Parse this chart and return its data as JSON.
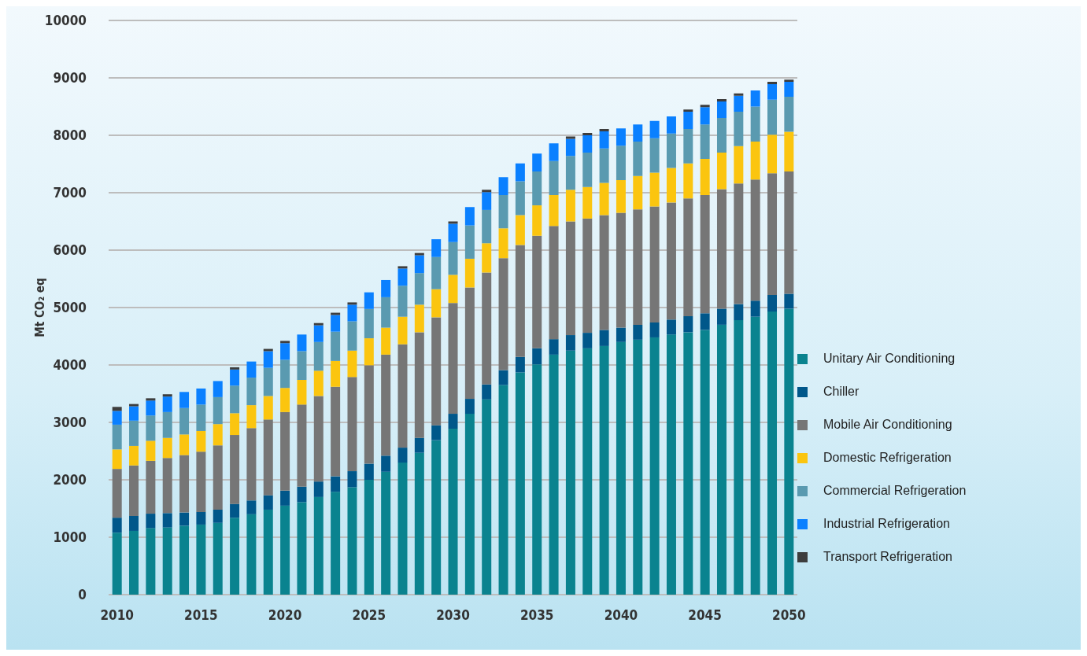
{
  "chart_data": {
    "type": "bar",
    "stacked": true,
    "ylabel": "Mt CO₂ eq",
    "categories": [
      "2010",
      null,
      null,
      null,
      null,
      "2015",
      null,
      null,
      null,
      null,
      "2020",
      null,
      null,
      null,
      null,
      "2025",
      null,
      null,
      null,
      null,
      "2030",
      null,
      null,
      null,
      null,
      "2035",
      null,
      null,
      null,
      null,
      "2040",
      null,
      null,
      null,
      null,
      "2045",
      null,
      null,
      null,
      null,
      "2050"
    ],
    "series": [
      {
        "name": "Unitary Air Conditioning",
        "color": "#0a838f",
        "values": [
          1080,
          1110,
          1160,
          1170,
          1200,
          1220,
          1250,
          1340,
          1400,
          1480,
          1550,
          1610,
          1700,
          1790,
          1870,
          2000,
          2140,
          2300,
          2470,
          2690,
          2890,
          3150,
          3400,
          3650,
          3870,
          4010,
          4180,
          4250,
          4290,
          4330,
          4400,
          4440,
          4480,
          4530,
          4570,
          4610,
          4700,
          4780,
          4840,
          4930,
          4980
        ]
      },
      {
        "name": "Chiller",
        "color": "#00578a",
        "values": [
          260,
          260,
          250,
          250,
          230,
          220,
          230,
          240,
          240,
          250,
          260,
          270,
          270,
          270,
          280,
          280,
          280,
          260,
          260,
          260,
          260,
          260,
          260,
          260,
          270,
          280,
          270,
          270,
          270,
          280,
          250,
          260,
          260,
          260,
          280,
          290,
          280,
          280,
          280,
          290,
          260
        ]
      },
      {
        "name": "Mobile Air Conditioning",
        "color": "#767676",
        "values": [
          850,
          880,
          920,
          960,
          1000,
          1050,
          1120,
          1200,
          1260,
          1320,
          1370,
          1430,
          1490,
          1560,
          1640,
          1715,
          1760,
          1800,
          1840,
          1880,
          1930,
          1940,
          1950,
          1950,
          1950,
          1960,
          1970,
          1980,
          1990,
          2000,
          2000,
          2010,
          2020,
          2040,
          2050,
          2060,
          2080,
          2100,
          2110,
          2120,
          2130
        ]
      },
      {
        "name": "Domestic Refrigeration",
        "color": "#fbc50f",
        "values": [
          340,
          340,
          350,
          350,
          360,
          360,
          370,
          380,
          400,
          410,
          420,
          430,
          440,
          450,
          460,
          470,
          470,
          480,
          480,
          490,
          490,
          500,
          510,
          520,
          520,
          530,
          540,
          550,
          550,
          560,
          570,
          580,
          590,
          600,
          610,
          630,
          640,
          650,
          660,
          670,
          690
        ]
      },
      {
        "name": "Commercial Refrigeration",
        "color": "#5a9ab0",
        "values": [
          430,
          440,
          440,
          450,
          460,
          460,
          470,
          480,
          480,
          490,
          490,
          500,
          500,
          510,
          510,
          510,
          530,
          540,
          550,
          560,
          570,
          580,
          580,
          580,
          590,
          590,
          590,
          590,
          600,
          600,
          600,
          600,
          600,
          600,
          600,
          600,
          600,
          600,
          610,
          610,
          610
        ]
      },
      {
        "name": "Industrial Refrigeration",
        "color": "#0a80ff",
        "values": [
          240,
          250,
          260,
          270,
          280,
          280,
          280,
          280,
          280,
          290,
          290,
          290,
          290,
          290,
          290,
          290,
          300,
          300,
          310,
          310,
          320,
          320,
          310,
          310,
          310,
          310,
          310,
          300,
          300,
          300,
          300,
          300,
          300,
          300,
          300,
          300,
          290,
          280,
          280,
          270,
          260
        ]
      },
      {
        "name": "Transport Refrigeration",
        "color": "#3d3d3d",
        "values": [
          70,
          40,
          40,
          40,
          null,
          null,
          null,
          40,
          null,
          40,
          40,
          null,
          40,
          40,
          40,
          null,
          null,
          40,
          40,
          null,
          40,
          null,
          40,
          null,
          null,
          null,
          null,
          40,
          40,
          40,
          null,
          null,
          null,
          null,
          40,
          40,
          40,
          40,
          null,
          40,
          40
        ]
      }
    ],
    "ylim": [
      0,
      10000
    ],
    "yticks": [
      0,
      1000,
      2000,
      3000,
      4000,
      5000,
      6000,
      7000,
      8000,
      9000,
      10000
    ],
    "grid": "y",
    "legend": "right"
  }
}
